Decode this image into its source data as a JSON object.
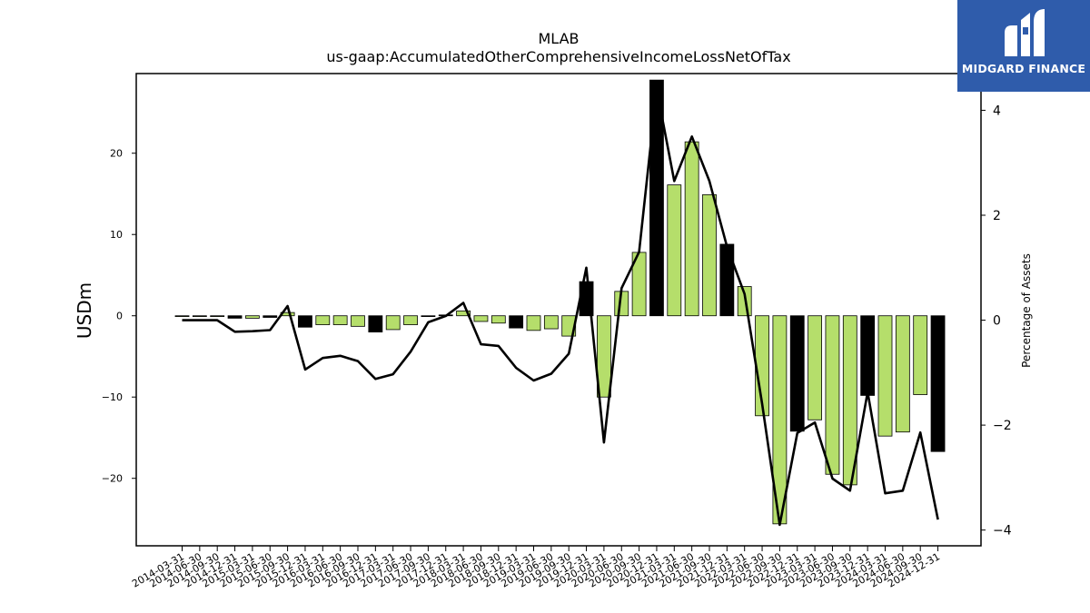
{
  "logo": {
    "text": "MIDGARD FINANCE"
  },
  "chart_data": {
    "type": "bar",
    "title": "MLAB",
    "subtitle": "us-gaap:AccumulatedOtherComprehensiveIncomeLossNetOfTax",
    "ylabel": "USDm",
    "y2label": "Percentage of Assets",
    "ylim": [
      -28.3,
      29.8
    ],
    "y2lim": [
      -4.3,
      4.7
    ],
    "yticks": [
      -20,
      -10,
      0,
      10,
      20
    ],
    "y2ticks": [
      -4,
      -2,
      0,
      2,
      4
    ],
    "colors": {
      "green": "#b5de6b",
      "black": "#000000",
      "line": "#000000"
    },
    "categories": [
      "2014-03-31",
      "2014-06-30",
      "2014-09-30",
      "2014-12-31",
      "2015-03-31",
      "2015-06-30",
      "2015-09-30",
      "2015-12-31",
      "2016-03-31",
      "2016-06-30",
      "2016-09-30",
      "2016-12-31",
      "2017-03-31",
      "2017-06-30",
      "2017-09-30",
      "2017-12-31",
      "2018-03-31",
      "2018-06-30",
      "2018-09-30",
      "2018-12-31",
      "2019-03-31",
      "2019-06-30",
      "2019-09-30",
      "2019-12-31",
      "2020-03-31",
      "2020-06-30",
      "2020-09-30",
      "2020-12-31",
      "2021-03-31",
      "2021-06-30",
      "2021-09-30",
      "2021-12-31",
      "2022-03-31",
      "2022-06-30",
      "2022-09-30",
      "2022-12-31",
      "2023-03-31",
      "2023-06-30",
      "2023-09-30",
      "2023-12-31",
      "2024-03-31",
      "2024-06-30",
      "2024-09-30",
      "2024-12-31"
    ],
    "series": [
      {
        "kind": "bar",
        "values": [
          -0.1,
          -0.1,
          -0.1,
          -0.3,
          -0.3,
          -0.2,
          0.4,
          -1.4,
          -1.1,
          -1.1,
          -1.3,
          -2.0,
          -1.7,
          -1.1,
          -0.1,
          0.1,
          0.6,
          -0.7,
          -0.9,
          -1.5,
          -1.8,
          -1.6,
          -2.5,
          4.2,
          -10.0,
          3.0,
          7.8,
          29.0,
          16.1,
          21.4,
          14.9,
          8.8,
          3.6,
          -12.3,
          -25.6,
          -14.2,
          -12.8,
          -19.5,
          -20.8,
          -9.8,
          -14.8,
          -14.3,
          -9.7,
          -16.7
        ],
        "highlight": [
          false,
          false,
          false,
          true,
          false,
          true,
          false,
          true,
          false,
          false,
          false,
          true,
          false,
          false,
          true,
          true,
          false,
          false,
          false,
          true,
          false,
          false,
          false,
          true,
          false,
          false,
          false,
          true,
          false,
          false,
          false,
          true,
          false,
          false,
          false,
          true,
          false,
          false,
          false,
          true,
          false,
          false,
          false,
          true
        ]
      },
      {
        "kind": "line",
        "axis": "right",
        "values": [
          0.0,
          0.0,
          0.0,
          -0.22,
          -0.21,
          -0.19,
          0.27,
          -0.94,
          -0.72,
          -0.68,
          -0.78,
          -1.12,
          -1.03,
          -0.6,
          -0.04,
          0.08,
          0.33,
          -0.46,
          -0.49,
          -0.91,
          -1.15,
          -1.02,
          -0.64,
          1.0,
          -2.33,
          0.61,
          1.3,
          4.4,
          2.65,
          3.5,
          2.65,
          1.4,
          0.5,
          -1.6,
          -3.9,
          -2.15,
          -1.95,
          -3.02,
          -3.25,
          -1.37,
          -3.3,
          -3.25,
          -2.14,
          -3.8
        ]
      }
    ]
  }
}
